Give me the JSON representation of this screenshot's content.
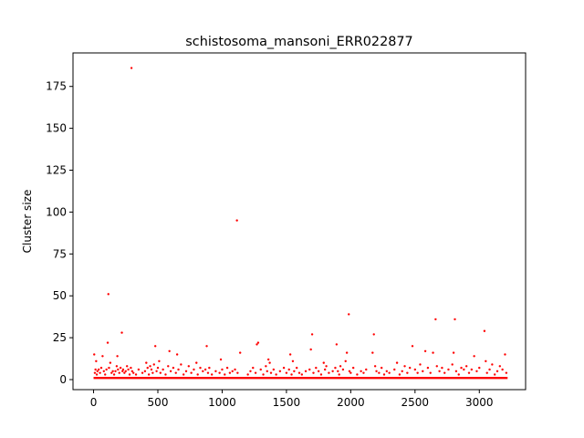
{
  "chart_data": {
    "type": "scatter",
    "title": "schistosoma_mansoni_ERR022877",
    "xlabel": "",
    "ylabel": "Cluster size",
    "xlim": [
      -160,
      3360
    ],
    "ylim": [
      -6,
      195
    ],
    "xticks": [
      0,
      500,
      1000,
      1500,
      2000,
      2500,
      3000
    ],
    "yticks": [
      0,
      25,
      50,
      75,
      100,
      125,
      150,
      175
    ],
    "grid": false,
    "marker_color": "#ff0000",
    "series": [
      {
        "baseline": {
          "value": 1,
          "x_from": 0,
          "x_to": 3220
        },
        "points": [
          [
            5,
            15
          ],
          [
            10,
            4
          ],
          [
            15,
            6
          ],
          [
            20,
            11
          ],
          [
            25,
            3
          ],
          [
            30,
            5
          ],
          [
            40,
            6
          ],
          [
            50,
            4
          ],
          [
            60,
            7
          ],
          [
            70,
            14
          ],
          [
            80,
            5
          ],
          [
            90,
            3
          ],
          [
            100,
            6
          ],
          [
            110,
            22
          ],
          [
            115,
            51
          ],
          [
            120,
            7
          ],
          [
            130,
            10
          ],
          [
            140,
            4
          ],
          [
            150,
            5
          ],
          [
            160,
            3
          ],
          [
            170,
            5
          ],
          [
            180,
            8
          ],
          [
            185,
            14
          ],
          [
            190,
            6
          ],
          [
            200,
            4
          ],
          [
            210,
            7
          ],
          [
            220,
            28
          ],
          [
            225,
            5
          ],
          [
            230,
            6
          ],
          [
            240,
            4
          ],
          [
            250,
            5
          ],
          [
            260,
            8
          ],
          [
            270,
            6
          ],
          [
            280,
            3
          ],
          [
            290,
            7
          ],
          [
            295,
            186
          ],
          [
            300,
            5
          ],
          [
            310,
            4
          ],
          [
            330,
            3
          ],
          [
            350,
            6
          ],
          [
            380,
            4
          ],
          [
            400,
            5
          ],
          [
            410,
            10
          ],
          [
            420,
            7
          ],
          [
            430,
            3
          ],
          [
            440,
            8
          ],
          [
            450,
            6
          ],
          [
            460,
            4
          ],
          [
            470,
            9
          ],
          [
            480,
            20
          ],
          [
            490,
            5
          ],
          [
            500,
            7
          ],
          [
            510,
            11
          ],
          [
            520,
            4
          ],
          [
            540,
            6
          ],
          [
            560,
            3
          ],
          [
            580,
            8
          ],
          [
            590,
            17
          ],
          [
            600,
            5
          ],
          [
            620,
            7
          ],
          [
            640,
            4
          ],
          [
            650,
            15
          ],
          [
            660,
            6
          ],
          [
            680,
            9
          ],
          [
            700,
            3
          ],
          [
            720,
            5
          ],
          [
            740,
            8
          ],
          [
            760,
            4
          ],
          [
            780,
            6
          ],
          [
            800,
            10
          ],
          [
            810,
            3
          ],
          [
            830,
            7
          ],
          [
            850,
            5
          ],
          [
            870,
            6
          ],
          [
            880,
            20
          ],
          [
            890,
            4
          ],
          [
            900,
            7
          ],
          [
            920,
            3
          ],
          [
            950,
            5
          ],
          [
            980,
            4
          ],
          [
            990,
            12
          ],
          [
            1000,
            6
          ],
          [
            1020,
            3
          ],
          [
            1040,
            7
          ],
          [
            1060,
            4
          ],
          [
            1080,
            5
          ],
          [
            1100,
            6
          ],
          [
            1115,
            95
          ],
          [
            1120,
            4
          ],
          [
            1140,
            16
          ],
          [
            1200,
            3
          ],
          [
            1220,
            5
          ],
          [
            1240,
            7
          ],
          [
            1260,
            4
          ],
          [
            1270,
            21
          ],
          [
            1280,
            22
          ],
          [
            1300,
            6
          ],
          [
            1320,
            3
          ],
          [
            1340,
            8
          ],
          [
            1350,
            5
          ],
          [
            1360,
            12
          ],
          [
            1370,
            10
          ],
          [
            1380,
            4
          ],
          [
            1400,
            6
          ],
          [
            1420,
            3
          ],
          [
            1450,
            5
          ],
          [
            1480,
            7
          ],
          [
            1500,
            4
          ],
          [
            1520,
            6
          ],
          [
            1530,
            15
          ],
          [
            1540,
            3
          ],
          [
            1550,
            11
          ],
          [
            1560,
            5
          ],
          [
            1580,
            7
          ],
          [
            1600,
            4
          ],
          [
            1620,
            3
          ],
          [
            1650,
            5
          ],
          [
            1680,
            6
          ],
          [
            1690,
            18
          ],
          [
            1700,
            27
          ],
          [
            1710,
            4
          ],
          [
            1730,
            7
          ],
          [
            1750,
            5
          ],
          [
            1770,
            3
          ],
          [
            1790,
            10
          ],
          [
            1800,
            6
          ],
          [
            1810,
            8
          ],
          [
            1830,
            4
          ],
          [
            1860,
            5
          ],
          [
            1880,
            7
          ],
          [
            1890,
            21
          ],
          [
            1900,
            5
          ],
          [
            1910,
            3
          ],
          [
            1920,
            8
          ],
          [
            1940,
            6
          ],
          [
            1960,
            11
          ],
          [
            1970,
            16
          ],
          [
            1985,
            39
          ],
          [
            1990,
            5
          ],
          [
            2000,
            4
          ],
          [
            2020,
            7
          ],
          [
            2050,
            3
          ],
          [
            2080,
            5
          ],
          [
            2100,
            4
          ],
          [
            2120,
            6
          ],
          [
            2170,
            16
          ],
          [
            2180,
            27
          ],
          [
            2190,
            8
          ],
          [
            2200,
            5
          ],
          [
            2220,
            4
          ],
          [
            2240,
            7
          ],
          [
            2260,
            3
          ],
          [
            2280,
            5
          ],
          [
            2300,
            4
          ],
          [
            2340,
            6
          ],
          [
            2360,
            10
          ],
          [
            2380,
            3
          ],
          [
            2400,
            5
          ],
          [
            2420,
            8
          ],
          [
            2440,
            4
          ],
          [
            2460,
            7
          ],
          [
            2480,
            20
          ],
          [
            2500,
            6
          ],
          [
            2520,
            4
          ],
          [
            2540,
            9
          ],
          [
            2560,
            5
          ],
          [
            2580,
            17
          ],
          [
            2600,
            7
          ],
          [
            2620,
            4
          ],
          [
            2640,
            16
          ],
          [
            2660,
            36
          ],
          [
            2670,
            8
          ],
          [
            2690,
            5
          ],
          [
            2710,
            7
          ],
          [
            2730,
            4
          ],
          [
            2760,
            6
          ],
          [
            2790,
            9
          ],
          [
            2800,
            16
          ],
          [
            2810,
            36
          ],
          [
            2820,
            5
          ],
          [
            2840,
            3
          ],
          [
            2860,
            7
          ],
          [
            2880,
            6
          ],
          [
            2900,
            8
          ],
          [
            2920,
            4
          ],
          [
            2940,
            6
          ],
          [
            2960,
            14
          ],
          [
            2980,
            5
          ],
          [
            3000,
            7
          ],
          [
            3040,
            29
          ],
          [
            3050,
            11
          ],
          [
            3060,
            4
          ],
          [
            3080,
            6
          ],
          [
            3100,
            9
          ],
          [
            3120,
            3
          ],
          [
            3140,
            5
          ],
          [
            3160,
            8
          ],
          [
            3180,
            6
          ],
          [
            3200,
            15
          ],
          [
            3210,
            4
          ]
        ]
      }
    ]
  }
}
